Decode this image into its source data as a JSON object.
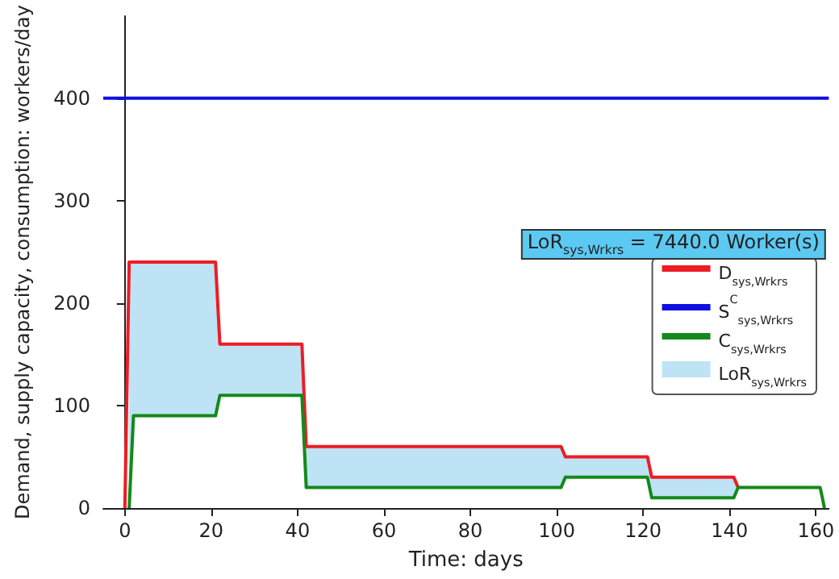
{
  "chart_data": {
    "type": "line",
    "xlabel": "Time: days",
    "ylabel": "Demand, supply capacity, consumption: workers/day",
    "xlim": [
      -5,
      163
    ],
    "xticks": [
      0,
      20,
      40,
      60,
      80,
      100,
      120,
      140,
      160
    ],
    "ylim": [
      0,
      480
    ],
    "yticks": [
      0,
      100,
      200,
      300,
      400
    ],
    "grid": false,
    "legend": "right",
    "marker": "none",
    "line_style": "solid",
    "annotations": [
      "LoR$_{sys,Wrkrs}$ = 7440.0 Worker(s)"
    ],
    "series": [
      {
        "name": "D$_{sys,Wrkrs}$",
        "color": "#ee1c24",
        "x": [
          0,
          1,
          21,
          22,
          41,
          42,
          101,
          102,
          121,
          122,
          141,
          142
        ],
        "values": [
          0,
          240,
          240,
          160,
          160,
          60,
          60,
          50,
          50,
          30,
          30,
          20
        ]
      },
      {
        "name": "S$^{C}$$_{sys,Wrkrs}$",
        "color": "#1010e0",
        "x": [
          -5,
          163
        ],
        "values": [
          400,
          400
        ]
      },
      {
        "name": "C$_{sys,Wrkrs}$",
        "color": "#138a1a",
        "x": [
          1,
          2,
          21,
          22,
          41,
          42,
          101,
          102,
          121,
          122,
          141,
          142,
          161,
          162
        ],
        "values": [
          0,
          90,
          90,
          110,
          110,
          20,
          20,
          30,
          30,
          10,
          10,
          20,
          20,
          0
        ]
      },
      {
        "name": "LoR$_{sys,Wrkrs}$",
        "type": "area",
        "color": "#bde3f5",
        "x": [
          1,
          2,
          21,
          22,
          41,
          42,
          101,
          102,
          121,
          122,
          141,
          142
        ],
        "values": [
          null,
          null,
          null,
          null,
          null,
          null,
          null,
          null,
          null,
          null,
          null,
          null
        ],
        "upper": [
          240,
          240,
          240,
          160,
          160,
          60,
          60,
          50,
          50,
          30,
          30,
          20
        ],
        "lower": [
          0,
          90,
          90,
          110,
          110,
          20,
          20,
          30,
          30,
          10,
          10,
          20
        ]
      }
    ]
  }
}
